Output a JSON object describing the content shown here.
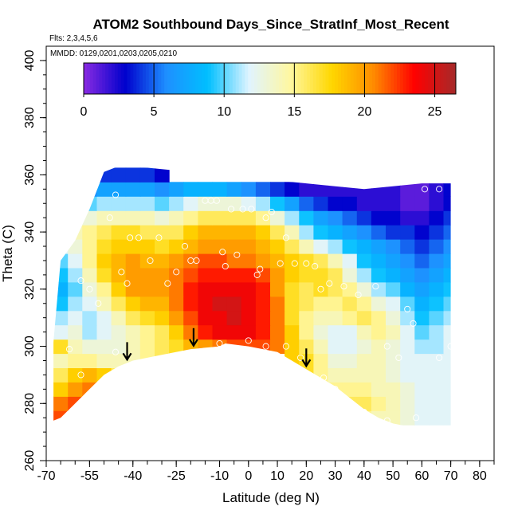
{
  "chart_data": {
    "type": "heatmap",
    "title": "ATOM2 Southbound Days_Since_StratInf_Most_Recent",
    "flights_note": "Flts: 2,3,4,5,6",
    "dates_note": "MMDD: 0129,0201,0203,0205,0210",
    "xlabel": "Latitude (deg N)",
    "ylabel": "Theta (C)",
    "xlim": [
      -70,
      85
    ],
    "ylim": [
      260,
      405
    ],
    "x_ticks": [
      -70,
      -55,
      -40,
      -25,
      -10,
      0,
      10,
      20,
      30,
      40,
      50,
      60,
      70,
      80
    ],
    "y_ticks": [
      260,
      280,
      300,
      320,
      340,
      360,
      380,
      400
    ],
    "colorbar": {
      "range": [
        0,
        26.5
      ],
      "ticks": [
        0,
        5,
        10,
        15,
        20,
        25
      ],
      "colors": [
        "#8a2be2",
        "#0000cd",
        "#1e90ff",
        "#00bfff",
        "#e0f4ff",
        "#fff7a0",
        "#ffd700",
        "#ff8c00",
        "#ff0000",
        "#a52a2a"
      ]
    },
    "field": {
      "lat": [
        -65,
        -60,
        -55,
        -50,
        -45,
        -40,
        -35,
        -30,
        -25,
        -20,
        -15,
        -10,
        -5,
        0,
        5,
        10,
        15,
        20,
        25,
        30,
        35,
        40,
        45,
        50,
        55,
        60,
        65,
        70
      ],
      "theta": [
        275,
        280,
        285,
        290,
        295,
        300,
        305,
        310,
        315,
        320,
        325,
        330,
        335,
        340,
        345,
        350,
        355,
        360
      ],
      "values": [
        [
          22,
          22,
          21,
          null,
          null,
          null,
          null,
          null,
          null,
          null,
          null,
          null,
          null,
          null,
          null,
          null,
          null,
          null,
          null,
          16,
          17,
          15,
          14,
          14,
          13,
          12,
          12,
          12
        ],
        [
          21,
          22,
          22,
          20,
          16,
          null,
          null,
          null,
          null,
          null,
          null,
          null,
          null,
          null,
          null,
          null,
          null,
          null,
          null,
          15,
          16,
          16,
          15,
          14,
          13,
          12,
          12,
          12
        ],
        [
          18,
          20,
          21,
          20,
          17,
          15,
          13,
          null,
          null,
          null,
          null,
          null,
          null,
          null,
          null,
          null,
          null,
          null,
          16,
          15,
          15,
          15,
          14,
          14,
          13,
          12,
          12,
          12
        ],
        [
          16,
          18,
          19,
          18,
          16,
          15,
          14,
          15,
          null,
          null,
          null,
          null,
          null,
          null,
          null,
          null,
          null,
          17,
          15,
          14,
          14,
          14,
          14,
          13,
          12,
          12,
          12,
          12
        ],
        [
          14,
          15,
          15,
          14,
          14,
          14,
          15,
          16,
          17,
          18,
          null,
          null,
          null,
          null,
          null,
          null,
          18,
          17,
          15,
          13,
          13,
          14,
          14,
          13,
          12,
          12,
          12,
          12
        ],
        [
          17,
          14,
          13,
          13,
          13,
          14,
          15,
          16,
          17,
          19,
          20,
          21,
          22,
          22,
          22,
          21,
          18,
          16,
          14,
          12,
          12,
          13,
          14,
          13,
          12,
          11,
          11,
          12
        ],
        [
          12,
          13,
          11,
          12,
          13,
          14,
          15,
          16,
          18,
          21,
          23,
          24,
          24,
          24,
          23,
          21,
          18,
          15,
          13,
          12,
          12,
          14,
          15,
          14,
          12,
          10,
          11,
          12
        ],
        [
          11,
          12,
          11,
          12,
          14,
          16,
          17,
          18,
          20,
          22,
          24,
          24,
          25,
          24,
          23,
          21,
          17,
          15,
          14,
          14,
          15,
          16,
          15,
          13,
          11,
          9,
          10,
          11
        ],
        [
          9,
          11,
          12,
          14,
          16,
          18,
          19,
          19,
          21,
          23,
          24,
          25,
          25,
          24,
          23,
          21,
          17,
          16,
          15,
          15,
          16,
          15,
          13,
          12,
          10,
          8,
          9,
          10
        ],
        [
          8,
          10,
          13,
          15,
          18,
          20,
          20,
          20,
          21,
          23,
          24,
          24,
          24,
          24,
          23,
          20,
          17,
          16,
          17,
          16,
          15,
          13,
          11,
          10,
          8,
          7,
          8,
          9
        ],
        [
          9,
          11,
          14,
          17,
          19,
          20,
          20,
          20,
          21,
          22,
          23,
          23,
          23,
          23,
          22,
          20,
          18,
          17,
          17,
          16,
          13,
          11,
          9,
          8,
          7,
          6,
          7,
          8
        ],
        [
          10,
          12,
          15,
          18,
          19,
          20,
          19,
          19,
          20,
          21,
          22,
          22,
          21,
          21,
          20,
          19,
          18,
          17,
          16,
          14,
          12,
          9,
          8,
          7,
          6,
          5,
          6,
          7
        ],
        [
          12,
          13,
          15,
          17,
          18,
          18,
          18,
          17,
          18,
          19,
          20,
          20,
          20,
          20,
          19,
          18,
          16,
          14,
          12,
          11,
          9,
          8,
          7,
          6,
          5,
          4,
          5,
          6
        ],
        [
          13,
          14,
          15,
          16,
          17,
          17,
          16,
          16,
          16,
          18,
          19,
          19,
          19,
          19,
          18,
          16,
          14,
          11,
          9,
          8,
          7,
          6,
          5,
          4,
          4,
          3,
          4,
          5
        ],
        [
          12,
          12,
          13,
          14,
          14,
          14,
          14,
          13,
          14,
          15,
          16,
          16,
          16,
          16,
          15,
          13,
          11,
          9,
          7,
          6,
          5,
          4,
          3,
          3,
          2,
          2,
          3,
          4
        ],
        [
          8,
          9,
          10,
          11,
          11,
          11,
          11,
          10,
          11,
          12,
          13,
          13,
          13,
          12,
          11,
          9,
          7,
          5,
          4,
          3,
          3,
          2,
          2,
          2,
          1,
          1,
          2,
          3
        ],
        [
          4,
          5,
          6,
          7,
          7,
          7,
          7,
          6,
          7,
          8,
          8,
          8,
          7,
          6,
          5,
          4,
          3,
          2,
          2,
          2,
          2,
          2,
          2,
          2,
          1,
          1,
          2,
          3
        ],
        [
          1,
          2,
          3,
          4,
          4,
          4,
          4,
          3,
          null,
          null,
          null,
          null,
          null,
          null,
          null,
          null,
          null,
          null,
          null,
          null,
          null,
          null,
          null,
          null,
          null,
          null,
          null,
          null
        ]
      ]
    },
    "lower_boundary": [
      [
        -70,
        273
      ],
      [
        -65,
        275
      ],
      [
        -60,
        280
      ],
      [
        -55,
        285
      ],
      [
        -50,
        290
      ],
      [
        -45,
        293
      ],
      [
        -40,
        295
      ],
      [
        -30,
        297
      ],
      [
        -20,
        299
      ],
      [
        -10,
        300
      ],
      [
        -8,
        301
      ],
      [
        0,
        300
      ],
      [
        5,
        299
      ],
      [
        10,
        298
      ],
      [
        15,
        295
      ],
      [
        20,
        292
      ],
      [
        25,
        289
      ],
      [
        30,
        286
      ],
      [
        35,
        282
      ],
      [
        40,
        278
      ],
      [
        45,
        275
      ],
      [
        50,
        273
      ],
      [
        55,
        272
      ],
      [
        60,
        272
      ],
      [
        65,
        271
      ],
      [
        70,
        271
      ]
    ],
    "upper_boundary": [
      [
        -65,
        330
      ],
      [
        -60,
        337
      ],
      [
        -55,
        348
      ],
      [
        -50,
        361
      ],
      [
        -45,
        363
      ],
      [
        -40,
        363
      ],
      [
        -30,
        362
      ],
      [
        -20,
        361
      ],
      [
        -10,
        360
      ],
      [
        0,
        359
      ],
      [
        10,
        358
      ],
      [
        20,
        357
      ],
      [
        30,
        356
      ],
      [
        40,
        355
      ],
      [
        50,
        356
      ],
      [
        60,
        357
      ],
      [
        70,
        357
      ]
    ],
    "sample_points": [
      [
        -63,
        335
      ],
      [
        -58,
        323
      ],
      [
        -55,
        320
      ],
      [
        -52,
        315
      ],
      [
        -48,
        345
      ],
      [
        -46,
        353
      ],
      [
        -44,
        326
      ],
      [
        -42,
        322
      ],
      [
        -41,
        338
      ],
      [
        -38,
        338
      ],
      [
        -34,
        330
      ],
      [
        -31,
        338
      ],
      [
        -28,
        322
      ],
      [
        -25,
        326
      ],
      [
        -22,
        335
      ],
      [
        -20,
        330
      ],
      [
        -18,
        330
      ],
      [
        -15,
        351
      ],
      [
        -13,
        351
      ],
      [
        -11,
        351
      ],
      [
        -9,
        333
      ],
      [
        -8,
        328
      ],
      [
        -6,
        348
      ],
      [
        -4,
        332
      ],
      [
        -2,
        348
      ],
      [
        1,
        348
      ],
      [
        3,
        325
      ],
      [
        4,
        327
      ],
      [
        6,
        345
      ],
      [
        8,
        347
      ],
      [
        11,
        329
      ],
      [
        13,
        338
      ],
      [
        16,
        329
      ],
      [
        20,
        329
      ],
      [
        23,
        328
      ],
      [
        25,
        320
      ],
      [
        28,
        322
      ],
      [
        33,
        321
      ],
      [
        38,
        318
      ],
      [
        44,
        321
      ],
      [
        48,
        300
      ],
      [
        52,
        296
      ],
      [
        55,
        313
      ],
      [
        57,
        308
      ],
      [
        61,
        355
      ],
      [
        66,
        355
      ],
      [
        70,
        300
      ],
      [
        -62,
        299
      ],
      [
        -58,
        290
      ],
      [
        -55,
        282
      ],
      [
        -50,
        284
      ],
      [
        -46,
        298
      ],
      [
        -40,
        291
      ],
      [
        -30,
        292
      ],
      [
        -20,
        296
      ],
      [
        -10,
        301
      ],
      [
        0,
        302
      ],
      [
        6,
        300
      ],
      [
        13,
        300
      ],
      [
        18,
        296
      ],
      [
        26,
        289
      ],
      [
        30,
        285
      ],
      [
        40,
        277
      ],
      [
        48,
        274
      ],
      [
        58,
        275
      ],
      [
        66,
        296
      ]
    ],
    "arrows_at_latitude": [
      -42,
      -19,
      20
    ]
  }
}
